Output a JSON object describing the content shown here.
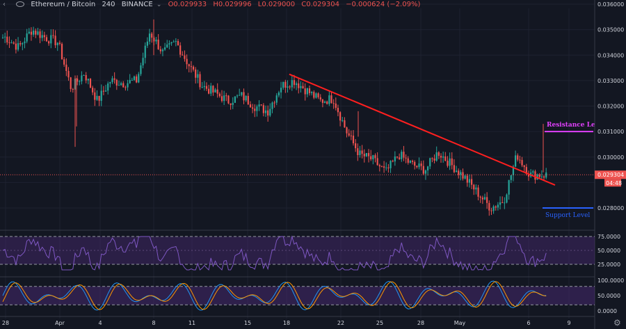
{
  "header": {
    "symbol": "Ethereum / Bitcoin",
    "interval": "240",
    "exchange": "BINANCE",
    "open": "O0.029933",
    "high": "H0.029996",
    "low": "L0.029000",
    "close": "C0.029304",
    "change": "−0.000624 (−2.09%)"
  },
  "price_axis": {
    "ticks": [
      "0.036000",
      "0.035000",
      "0.034000",
      "0.033000",
      "0.032000",
      "0.031000",
      "0.030000",
      "0.028000"
    ],
    "last_price": "0.029304",
    "countdown": "04:48"
  },
  "annotations": {
    "resistance": "Resistance Level",
    "support": "Support Level"
  },
  "rsi_axis": [
    "75.0000",
    "50.0000",
    "25.0000"
  ],
  "stoch_axis": [
    "100.0000",
    "50.0000",
    "0.0000"
  ],
  "time_axis": [
    "28",
    "Apr",
    "4",
    "8",
    "11",
    "15",
    "18",
    "22",
    "25",
    "28",
    "May",
    "6",
    "9"
  ],
  "colors": {
    "background": "#131722",
    "up": "#26a69a",
    "down": "#ef5350",
    "trendline": "#ff1f1f",
    "resistance": "#e040fb",
    "support": "#2962ff",
    "rsi_line": "#7e57c2",
    "stoch_k": "#2196f3",
    "stoch_d": "#ff9800",
    "band": "#4a2a73"
  },
  "chart_data": {
    "type": "candlestick",
    "title": "Ethereum / Bitcoin 240 BINANCE",
    "ylim": [
      0.0275,
      0.0362
    ],
    "x": [
      "Mar 28",
      "Apr 1",
      "Apr 4",
      "Apr 8",
      "Apr 11",
      "Apr 15",
      "Apr 18",
      "Apr 22",
      "Apr 25",
      "Apr 28",
      "May 1",
      "May 6",
      "May 9"
    ],
    "close_path": [
      {
        "x": "Mar 28",
        "y": 0.0347
      },
      {
        "x": "Mar 29",
        "y": 0.0343
      },
      {
        "x": "Mar 30",
        "y": 0.035
      },
      {
        "x": "Mar 31",
        "y": 0.0347
      },
      {
        "x": "Apr 1",
        "y": 0.0345
      },
      {
        "x": "Apr 2",
        "y": 0.0327
      },
      {
        "x": "Apr 3",
        "y": 0.0333
      },
      {
        "x": "Apr 4",
        "y": 0.0322
      },
      {
        "x": "Apr 5",
        "y": 0.033
      },
      {
        "x": "Apr 6",
        "y": 0.0329
      },
      {
        "x": "Apr 7",
        "y": 0.033
      },
      {
        "x": "Apr 8",
        "y": 0.0349
      },
      {
        "x": "Apr 9",
        "y": 0.0341
      },
      {
        "x": "Apr 10",
        "y": 0.0345
      },
      {
        "x": "Apr 11",
        "y": 0.0336
      },
      {
        "x": "Apr 12",
        "y": 0.0328
      },
      {
        "x": "Apr 13",
        "y": 0.0325
      },
      {
        "x": "Apr 14",
        "y": 0.0322
      },
      {
        "x": "Apr 15",
        "y": 0.0324
      },
      {
        "x": "Apr 16",
        "y": 0.032
      },
      {
        "x": "Apr 17",
        "y": 0.0318
      },
      {
        "x": "Apr 18",
        "y": 0.0328
      },
      {
        "x": "Apr 19",
        "y": 0.033
      },
      {
        "x": "Apr 20",
        "y": 0.0326
      },
      {
        "x": "Apr 21",
        "y": 0.0322
      },
      {
        "x": "Apr 22",
        "y": 0.0323
      },
      {
        "x": "Apr 23",
        "y": 0.031
      },
      {
        "x": "Apr 24",
        "y": 0.0301
      },
      {
        "x": "Apr 25",
        "y": 0.0299
      },
      {
        "x": "Apr 26",
        "y": 0.0294
      },
      {
        "x": "Apr 27",
        "y": 0.0301
      },
      {
        "x": "Apr 28",
        "y": 0.0297
      },
      {
        "x": "Apr 29",
        "y": 0.0295
      },
      {
        "x": "Apr 30",
        "y": 0.0302
      },
      {
        "x": "May 1",
        "y": 0.0297
      },
      {
        "x": "May 2",
        "y": 0.0292
      },
      {
        "x": "May 3",
        "y": 0.0286
      },
      {
        "x": "May 4",
        "y": 0.028
      },
      {
        "x": "May 5",
        "y": 0.0283
      },
      {
        "x": "May 6",
        "y": 0.0301
      },
      {
        "x": "May 7",
        "y": 0.0293
      }
    ],
    "trendline": [
      {
        "x": "Apr 18",
        "y": 0.03325
      },
      {
        "x": "May 7",
        "y": 0.0289
      }
    ],
    "resistance_level": 0.031,
    "support_level": 0.028,
    "last_price": 0.029304,
    "indicators": {
      "rsi": {
        "levels": [
          75,
          50,
          25
        ]
      },
      "stoch_rsi": {
        "levels": [
          100,
          50,
          0
        ]
      }
    }
  }
}
